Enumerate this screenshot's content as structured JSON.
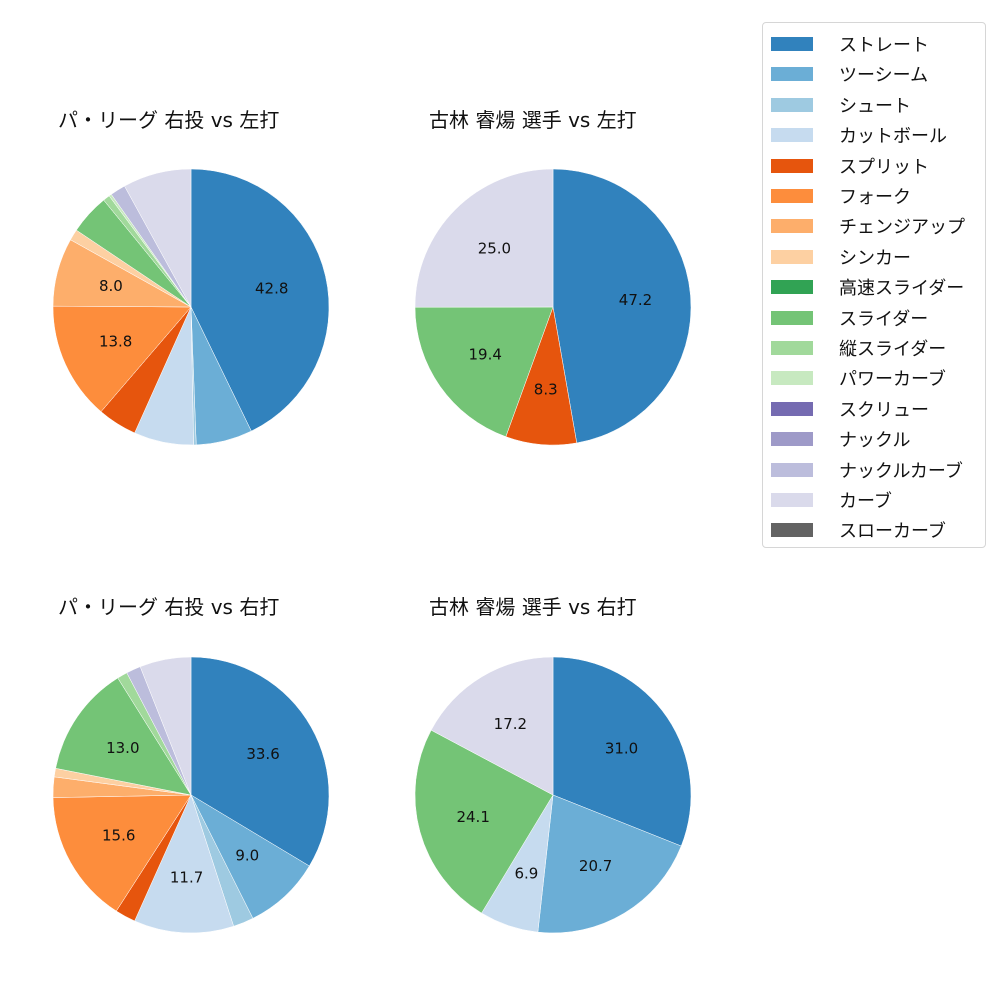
{
  "chart_data": [
    {
      "type": "pie",
      "title": "パ・リーグ 右投 vs 左打",
      "categories": [
        "ストレート",
        "ツーシーム",
        "シュート",
        "カットボール",
        "スプリット",
        "フォーク",
        "チェンジアップ",
        "シンカー",
        "スライダー",
        "縦スライダー",
        "パワーカーブ",
        "ナックルカーブ",
        "カーブ"
      ],
      "values": [
        42.8,
        6.6,
        0.3,
        7.0,
        4.6,
        13.8,
        8.0,
        1.3,
        4.7,
        0.8,
        0.3,
        1.8,
        8.0
      ],
      "labels_shown": [
        "42.8",
        "",
        "",
        "",
        "",
        "13.8",
        "8.0",
        "",
        "",
        "",
        "",
        "",
        ""
      ],
      "start_angle": 90,
      "direction": "clockwise"
    },
    {
      "type": "pie",
      "title": "古林 睿煬 選手 vs 左打",
      "categories": [
        "ストレート",
        "スプリット",
        "スライダー",
        "カーブ"
      ],
      "values": [
        47.2,
        8.3,
        19.4,
        25.0
      ],
      "labels_shown": [
        "47.2",
        "8.3",
        "19.4",
        "25.0"
      ],
      "start_angle": 90,
      "direction": "clockwise"
    },
    {
      "type": "pie",
      "title": "パ・リーグ 右投 vs 右打",
      "categories": [
        "ストレート",
        "ツーシーム",
        "シュート",
        "カットボール",
        "スプリット",
        "フォーク",
        "チェンジアップ",
        "シンカー",
        "スライダー",
        "縦スライダー",
        "ナックルカーブ",
        "カーブ"
      ],
      "values": [
        33.6,
        9.0,
        2.4,
        11.7,
        2.4,
        15.6,
        2.4,
        1.0,
        13.0,
        1.2,
        1.7,
        6.0
      ],
      "labels_shown": [
        "33.6",
        "9.0",
        "",
        "11.7",
        "",
        "15.6",
        "",
        "",
        "13.0",
        "",
        "",
        ""
      ],
      "start_angle": 90,
      "direction": "clockwise"
    },
    {
      "type": "pie",
      "title": "古林 睿煬 選手 vs 右打",
      "categories": [
        "ストレート",
        "ツーシーム",
        "カットボール",
        "スライダー",
        "カーブ"
      ],
      "values": [
        31.0,
        20.7,
        6.9,
        24.1,
        17.2
      ],
      "labels_shown": [
        "31.0",
        "20.7",
        "6.9",
        "24.1",
        "17.2"
      ],
      "start_angle": 90,
      "direction": "clockwise"
    }
  ],
  "legend": {
    "position": "upper right",
    "items": [
      {
        "label": "ストレート",
        "color": "#3182bd"
      },
      {
        "label": "ツーシーム",
        "color": "#6baed6"
      },
      {
        "label": "シュート",
        "color": "#9ecae1"
      },
      {
        "label": "カットボール",
        "color": "#c6dbef"
      },
      {
        "label": "スプリット",
        "color": "#e6550d"
      },
      {
        "label": "フォーク",
        "color": "#fd8d3c"
      },
      {
        "label": "チェンジアップ",
        "color": "#fdae6b"
      },
      {
        "label": "シンカー",
        "color": "#fdd0a2"
      },
      {
        "label": "高速スライダー",
        "color": "#31a354"
      },
      {
        "label": "スライダー",
        "color": "#74c476"
      },
      {
        "label": "縦スライダー",
        "color": "#a1d99b"
      },
      {
        "label": "パワーカーブ",
        "color": "#c7e9c0"
      },
      {
        "label": "スクリュー",
        "color": "#756bb1"
      },
      {
        "label": "ナックル",
        "color": "#9e9ac8"
      },
      {
        "label": "ナックルカーブ",
        "color": "#bcbddc"
      },
      {
        "label": "カーブ",
        "color": "#dadaeb"
      },
      {
        "label": "スローカーブ",
        "color": "#636363"
      }
    ]
  },
  "panels": [
    {
      "title": "パ・リーグ 右投 vs 左打"
    },
    {
      "title": "古林 睿煬 選手 vs 左打"
    },
    {
      "title": "パ・リーグ 右投 vs 右打"
    },
    {
      "title": "古林 睿煬 選手 vs 右打"
    }
  ]
}
